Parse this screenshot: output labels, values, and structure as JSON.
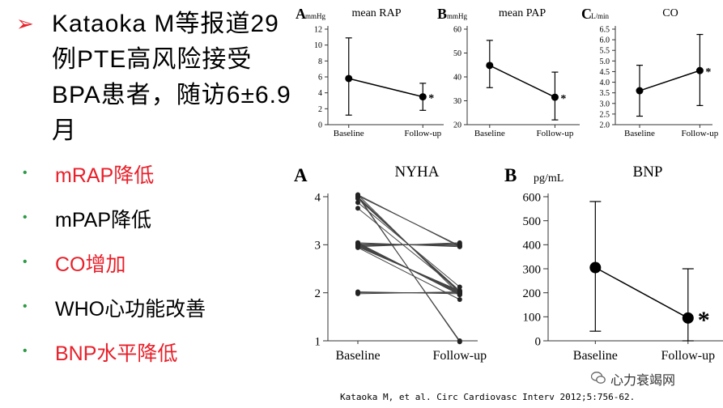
{
  "heading": {
    "arrow_icon": "arrow-bullet-icon",
    "text": "Kataoka M等报道29例PTE高风险接受BPA患者，随访6±6.9月"
  },
  "bullets": [
    {
      "text": "mRAP降低",
      "color": "#e8202a"
    },
    {
      "text": "mPAP降低",
      "color": "#000000"
    },
    {
      "text": "CO增加",
      "color": "#e8202a"
    },
    {
      "text": "WHO心功能改善",
      "color": "#000000"
    },
    {
      "text": "BNP水平降低",
      "color": "#e8202a"
    }
  ],
  "citation": "Kataoka M, et al. Circ Cardiovasc Interv 2012;5:756-62.",
  "watermark": "心力衰竭网",
  "chart_data": [
    {
      "type": "errorbar",
      "panel": "A",
      "title": "mean RAP",
      "unit": "mmHg",
      "categories": [
        "Baseline",
        "Follow-up"
      ],
      "values": [
        5.8,
        3.5
      ],
      "upper": [
        10.9,
        5.2
      ],
      "lower": [
        1.2,
        1.8
      ],
      "ylim": [
        0,
        12
      ],
      "yticks": [
        0,
        2,
        4,
        6,
        8,
        10,
        12
      ],
      "significance": "*"
    },
    {
      "type": "errorbar",
      "panel": "B",
      "title": "mean PAP",
      "unit": "mmHg",
      "categories": [
        "Baseline",
        "Follow-up"
      ],
      "values": [
        44.8,
        31.5
      ],
      "upper": [
        55.3,
        42.0
      ],
      "lower": [
        35.5,
        22.0
      ],
      "ylim": [
        20,
        60
      ],
      "yticks": [
        20,
        30,
        40,
        50,
        60
      ],
      "significance": "*"
    },
    {
      "type": "errorbar",
      "panel": "C",
      "title": "CO",
      "unit": "L/min",
      "categories": [
        "Baseline",
        "Follow-up"
      ],
      "values": [
        3.6,
        4.55
      ],
      "upper": [
        4.8,
        6.25
      ],
      "lower": [
        2.4,
        2.9
      ],
      "ylim": [
        2.0,
        6.5
      ],
      "yticks": [
        "2.0",
        "2.5",
        "3.0",
        "3.5",
        "4.0",
        "4.5",
        "5.0",
        "5.5",
        "6.0",
        "6.5"
      ],
      "significance": "*"
    },
    {
      "type": "line",
      "panel": "A",
      "title": "NYHA",
      "categories": [
        "Baseline",
        "Follow-up"
      ],
      "ylim": [
        1,
        4
      ],
      "yticks": [
        1,
        2,
        3,
        4
      ],
      "series": [
        [
          4.0,
          3.0
        ],
        [
          4.0,
          3.0
        ],
        [
          4.0,
          2.0
        ],
        [
          4.0,
          2.0
        ],
        [
          4.0,
          2.0
        ],
        [
          4.0,
          2.0
        ],
        [
          4.0,
          1.0
        ],
        [
          4.0,
          1.0
        ],
        [
          3.9,
          2.1
        ],
        [
          3.8,
          2.0
        ],
        [
          3.0,
          3.0
        ],
        [
          3.0,
          3.0
        ],
        [
          3.0,
          3.0
        ],
        [
          3.0,
          3.0
        ],
        [
          3.0,
          3.0
        ],
        [
          3.0,
          2.0
        ],
        [
          3.0,
          2.0
        ],
        [
          3.0,
          2.0
        ],
        [
          3.0,
          2.0
        ],
        [
          3.0,
          2.0
        ],
        [
          3.0,
          2.0
        ],
        [
          3.0,
          2.0
        ],
        [
          3.0,
          2.0
        ],
        [
          3.0,
          2.0
        ],
        [
          3.0,
          2.0
        ],
        [
          2.9,
          1.9
        ],
        [
          2.0,
          2.0
        ],
        [
          2.0,
          2.0
        ],
        [
          2.0,
          2.0
        ]
      ]
    },
    {
      "type": "errorbar",
      "panel": "B",
      "title": "BNP",
      "unit": "pg/mL",
      "categories": [
        "Baseline",
        "Follow-up"
      ],
      "values": [
        305,
        95
      ],
      "upper": [
        580,
        300
      ],
      "lower": [
        40,
        0
      ],
      "ylim": [
        0,
        600
      ],
      "yticks": [
        0,
        100,
        200,
        300,
        400,
        500,
        600
      ],
      "significance": "*"
    }
  ]
}
